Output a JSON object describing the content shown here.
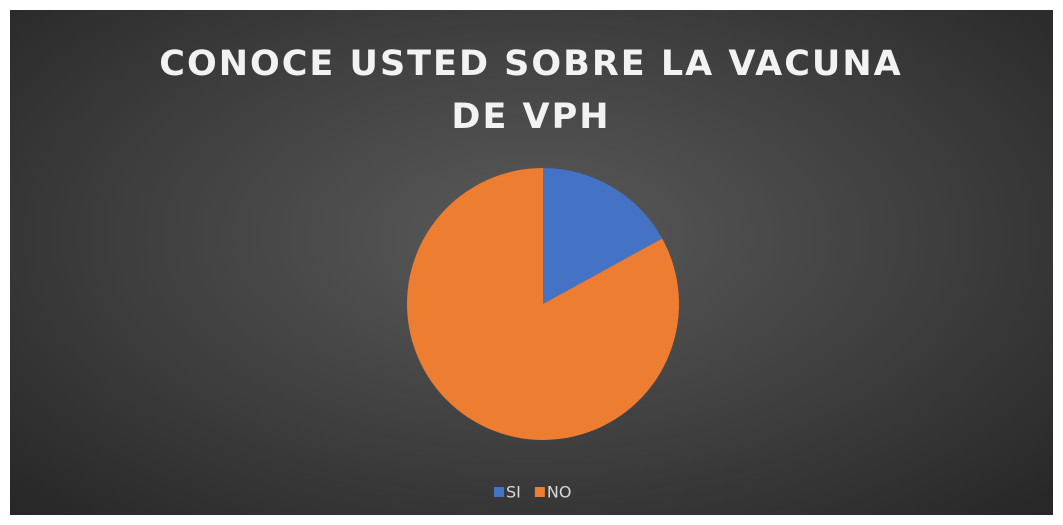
{
  "chart_data": {
    "type": "pie",
    "title": "CONOCE USTED SOBRE LA VACUNA DE VPH",
    "categories": [
      "SI",
      "NO"
    ],
    "values": [
      17,
      83
    ],
    "colors": [
      "#4472c4",
      "#ed7d31"
    ],
    "legend": "bottom"
  }
}
